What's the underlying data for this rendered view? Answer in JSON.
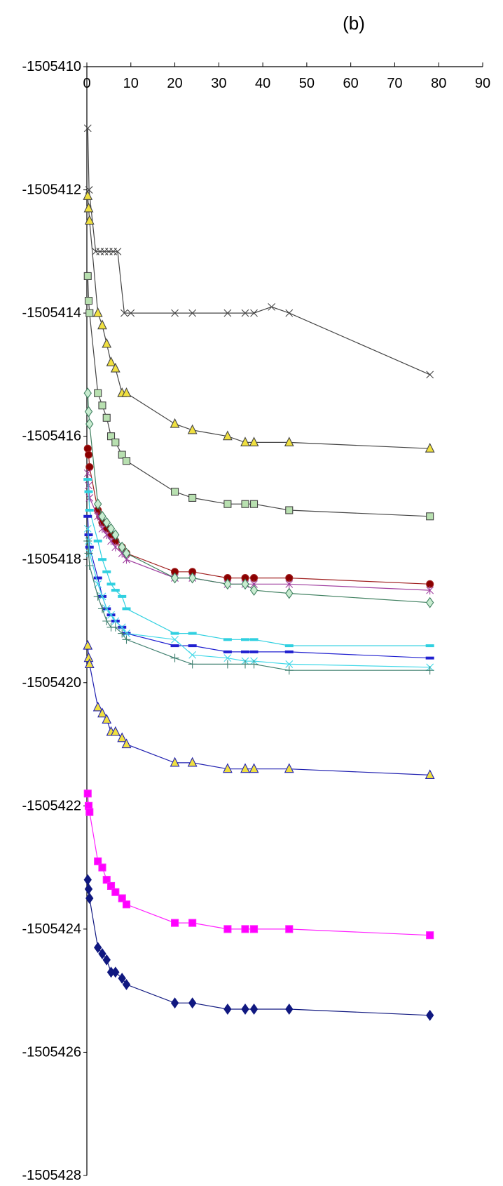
{
  "chart_data": {
    "type": "line",
    "title": "(b)",
    "xlabel": "",
    "ylabel": "",
    "xlim": [
      0,
      90
    ],
    "ylim": [
      -1505428,
      -1505410
    ],
    "x_ticks": [
      0,
      10,
      20,
      30,
      40,
      50,
      60,
      70,
      80,
      90
    ],
    "y_ticks": [
      -1505410,
      -1505412,
      -1505414,
      -1505416,
      -1505418,
      -1505420,
      -1505422,
      -1505424,
      -1505426,
      -1505428
    ],
    "x_axis_position": "top",
    "grid": false,
    "legend": "none",
    "series": [
      {
        "color": "#444444",
        "marker": "x",
        "x": [
          0.2,
          0.5,
          2,
          3,
          4,
          5,
          6,
          7,
          8.5,
          10,
          20,
          24,
          32,
          36,
          38,
          42,
          46,
          78
        ],
        "y": [
          -1505411,
          -1505412,
          -1505413,
          -1505413,
          -1505413,
          -1505413,
          -1505413,
          -1505413,
          -1505414,
          -1505414,
          -1505414,
          -1505414,
          -1505414,
          -1505414,
          -1505414,
          -1505413.9,
          -1505414,
          -1505415
        ]
      },
      {
        "color": "#444444",
        "marker": "triangle",
        "fill": "#f0e040",
        "x": [
          0.2,
          0.4,
          0.6,
          2.5,
          3.5,
          4.5,
          5.5,
          6.5,
          8,
          9,
          20,
          24,
          32,
          36,
          38,
          46,
          78
        ],
        "y": [
          -1505412.1,
          -1505412.3,
          -1505412.5,
          -1505414,
          -1505414.2,
          -1505414.5,
          -1505414.8,
          -1505414.9,
          -1505415.3,
          -1505415.3,
          -1505415.8,
          -1505415.9,
          -1505416,
          -1505416.1,
          -1505416.1,
          -1505416.1,
          -1505416.2
        ]
      },
      {
        "color": "#444444",
        "marker": "square",
        "fill": "#b8e0b0",
        "x": [
          0.2,
          0.4,
          0.6,
          2.5,
          3.5,
          4.5,
          5.5,
          6.5,
          8,
          9,
          20,
          24,
          32,
          36,
          38,
          46,
          78
        ],
        "y": [
          -1505413.4,
          -1505413.8,
          -1505414,
          -1505415.3,
          -1505415.5,
          -1505415.7,
          -1505416,
          -1505416.1,
          -1505416.3,
          -1505416.4,
          -1505416.9,
          -1505417,
          -1505417.1,
          -1505417.1,
          -1505417.1,
          -1505417.2,
          -1505417.3
        ]
      },
      {
        "color": "#a02020",
        "marker": "circle",
        "fill": "#8b0000",
        "x": [
          0.2,
          0.4,
          0.6,
          2.5,
          3,
          3.5,
          4.5,
          5.5,
          6.5,
          8,
          9,
          20,
          24,
          32,
          36,
          38,
          46,
          78
        ],
        "y": [
          -1505416.2,
          -1505416.3,
          -1505416.5,
          -1505417.2,
          -1505417.3,
          -1505417.4,
          -1505417.5,
          -1505417.6,
          -1505417.7,
          -1505417.8,
          -1505417.9,
          -1505418.2,
          -1505418.2,
          -1505418.3,
          -1505418.3,
          -1505418.3,
          -1505418.3,
          -1505418.4
        ]
      },
      {
        "color": "#a040a0",
        "marker": "asterisk",
        "x": [
          0.2,
          0.4,
          0.6,
          2.5,
          3.5,
          4.5,
          5.5,
          6.5,
          8,
          9,
          20,
          24,
          32,
          36,
          38,
          46,
          78
        ],
        "y": [
          -1505416.6,
          -1505416.8,
          -1505417,
          -1505417.3,
          -1505417.5,
          -1505417.6,
          -1505417.7,
          -1505417.8,
          -1505417.9,
          -1505418,
          -1505418.3,
          -1505418.3,
          -1505418.4,
          -1505418.4,
          -1505418.4,
          -1505418.4,
          -1505418.5
        ]
      },
      {
        "color": "#408060",
        "marker": "diamond",
        "fill": "#c8ecd0",
        "x": [
          0.2,
          0.4,
          0.6,
          2.5,
          3.5,
          4.5,
          5.5,
          6.5,
          8,
          9,
          20,
          24,
          32,
          36,
          38,
          46,
          78
        ],
        "y": [
          -1505415.3,
          -1505415.6,
          -1505415.8,
          -1505417.1,
          -1505417.3,
          -1505417.4,
          -1505417.5,
          -1505417.6,
          -1505417.8,
          -1505417.9,
          -1505418.3,
          -1505418.3,
          -1505418.4,
          -1505418.4,
          -1505418.5,
          -1505418.55,
          -1505418.7
        ]
      },
      {
        "color": "#30d0e0",
        "marker": "dash",
        "x": [
          0.2,
          0.4,
          0.6,
          2.5,
          3.5,
          4.5,
          5.5,
          6.5,
          8,
          9,
          20,
          24,
          32,
          36,
          38,
          46,
          78
        ],
        "y": [
          -1505416.7,
          -1505416.9,
          -1505417.2,
          -1505417.7,
          -1505418,
          -1505418.2,
          -1505418.4,
          -1505418.5,
          -1505418.6,
          -1505418.8,
          -1505419.2,
          -1505419.2,
          -1505419.3,
          -1505419.3,
          -1505419.3,
          -1505419.4,
          -1505419.4
        ]
      },
      {
        "color": "#2020d0",
        "marker": "dash",
        "x": [
          0.2,
          0.4,
          0.6,
          2.5,
          3.5,
          4.5,
          5.5,
          6.5,
          8,
          9,
          20,
          24,
          32,
          36,
          38,
          46,
          78
        ],
        "y": [
          -1505417.3,
          -1505417.6,
          -1505417.8,
          -1505418.3,
          -1505418.6,
          -1505418.8,
          -1505418.9,
          -1505419,
          -1505419.1,
          -1505419.2,
          -1505419.4,
          -1505419.4,
          -1505419.5,
          -1505419.5,
          -1505419.5,
          -1505419.5,
          -1505419.6
        ]
      },
      {
        "color": "#40d8e8",
        "marker": "x",
        "x": [
          0.2,
          0.4,
          0.6,
          2.5,
          3.5,
          4.5,
          5.5,
          6.5,
          8,
          9,
          20,
          24,
          32,
          36,
          38,
          46,
          78
        ],
        "y": [
          -1505417.5,
          -1505417.7,
          -1505417.9,
          -1505418.4,
          -1505418.6,
          -1505418.8,
          -1505418.9,
          -1505419,
          -1505419.1,
          -1505419.2,
          -1505419.3,
          -1505419.55,
          -1505419.6,
          -1505419.65,
          -1505419.65,
          -1505419.7,
          -1505419.75
        ]
      },
      {
        "color": "#408070",
        "marker": "plus",
        "x": [
          0.2,
          0.4,
          0.6,
          2.5,
          3.5,
          4.5,
          5.5,
          6.5,
          8,
          9,
          20,
          24,
          32,
          36,
          38,
          46,
          78
        ],
        "y": [
          -1505417.7,
          -1505417.9,
          -1505418.1,
          -1505418.6,
          -1505418.8,
          -1505419,
          -1505419.1,
          -1505419.1,
          -1505419.2,
          -1505419.3,
          -1505419.6,
          -1505419.7,
          -1505419.7,
          -1505419.7,
          -1505419.7,
          -1505419.8,
          -1505419.8
        ]
      },
      {
        "color": "#2020b0",
        "marker": "triangle",
        "fill": "#f0e040",
        "x": [
          0.2,
          0.4,
          0.6,
          2.5,
          3.5,
          4.5,
          5.5,
          6.5,
          8,
          9,
          20,
          24,
          32,
          36,
          38,
          46,
          78
        ],
        "y": [
          -1505419.4,
          -1505419.6,
          -1505419.7,
          -1505420.4,
          -1505420.5,
          -1505420.6,
          -1505420.8,
          -1505420.8,
          -1505420.9,
          -1505421,
          -1505421.3,
          -1505421.3,
          -1505421.4,
          -1505421.4,
          -1505421.4,
          -1505421.4,
          -1505421.5
        ]
      },
      {
        "color": "#ff20ff",
        "marker": "square",
        "fill": "#ff00ff",
        "x": [
          0.2,
          0.4,
          0.6,
          2.5,
          3.5,
          4.5,
          5.5,
          6.5,
          8,
          9,
          20,
          24,
          32,
          36,
          38,
          46,
          78
        ],
        "y": [
          -1505421.8,
          -1505422,
          -1505422.1,
          -1505422.9,
          -1505423,
          -1505423.2,
          -1505423.3,
          -1505423.4,
          -1505423.5,
          -1505423.6,
          -1505423.9,
          -1505423.9,
          -1505424,
          -1505424,
          -1505424,
          -1505424,
          -1505424.1
        ]
      },
      {
        "color": "#101880",
        "marker": "diamond",
        "fill": "#101880",
        "x": [
          0.2,
          0.4,
          0.6,
          2.5,
          3.5,
          4.5,
          5.5,
          6.5,
          8,
          9,
          20,
          24,
          32,
          36,
          38,
          46,
          78
        ],
        "y": [
          -1505423.2,
          -1505423.35,
          -1505423.5,
          -1505424.3,
          -1505424.4,
          -1505424.5,
          -1505424.7,
          -1505424.7,
          -1505424.8,
          -1505424.9,
          -1505425.2,
          -1505425.2,
          -1505425.3,
          -1505425.3,
          -1505425.3,
          -1505425.3,
          -1505425.4
        ]
      }
    ]
  }
}
